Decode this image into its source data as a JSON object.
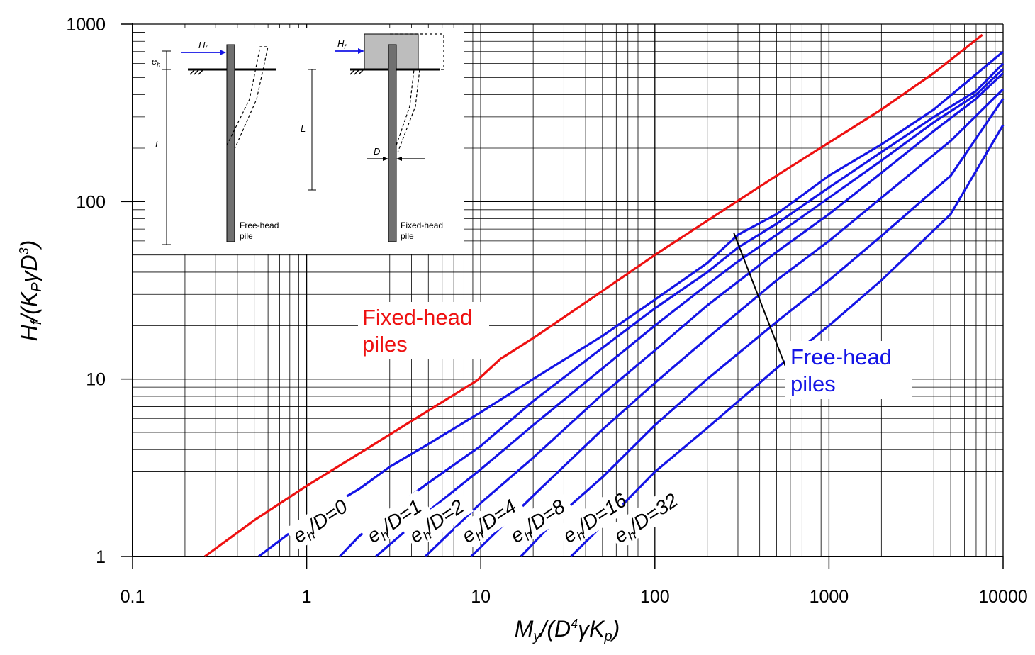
{
  "chart_data": {
    "type": "line",
    "log_x": true,
    "log_y": true,
    "xlim": [
      0.1,
      10000
    ],
    "ylim": [
      1,
      1000
    ],
    "x_ticks": [
      "0.1",
      "1",
      "10",
      "100",
      "1000",
      "10000"
    ],
    "y_ticks": [
      "1",
      "10",
      "100",
      "1000"
    ],
    "grid": true,
    "xlabel": {
      "main": "M",
      "sub": "y",
      "rest1": "/(D",
      "sup": "4",
      "rest2": "γK",
      "sub2": "p",
      "rest3": ")"
    },
    "ylabel": {
      "main": "H",
      "sub": "f",
      "rest1": "/(K",
      "sub2": "P",
      "rest2": "γD",
      "sup": "3",
      "rest3": ")"
    },
    "series": [
      {
        "name": "Fixed-head piles",
        "color": "#ee1111",
        "x": [
          0.26,
          0.5,
          1,
          2,
          4,
          9.5,
          13,
          20,
          40,
          100,
          200,
          500,
          1000,
          2000,
          4000,
          7600
        ],
        "y": [
          1.0,
          1.6,
          2.5,
          3.8,
          5.8,
          9.8,
          13,
          17,
          27,
          50,
          78,
          140,
          215,
          330,
          530,
          870
        ]
      },
      {
        "name": "e_h/D=0",
        "color": "#1414e6",
        "x": [
          0.53,
          1,
          2,
          3,
          5,
          10,
          20,
          50,
          100,
          200,
          300,
          500,
          1000,
          2000,
          4000,
          10000
        ],
        "y": [
          1.0,
          1.6,
          2.4,
          3.2,
          4.3,
          6.5,
          10,
          17.5,
          28,
          45,
          65,
          85,
          140,
          210,
          330,
          700
        ]
      },
      {
        "name": "e_h/D=1",
        "color": "#1414e6",
        "x": [
          1.55,
          2,
          3,
          5,
          10,
          20,
          50,
          100,
          200,
          300,
          500,
          1000,
          2000,
          4000,
          7000,
          10000
        ],
        "y": [
          1.0,
          1.3,
          1.8,
          2.6,
          4.2,
          7.5,
          15,
          25,
          40,
          55,
          75,
          120,
          190,
          300,
          420,
          600
        ]
      },
      {
        "name": "e_h/D=2",
        "color": "#1414e6",
        "x": [
          2.5,
          5,
          10,
          20,
          50,
          100,
          200,
          300,
          500,
          1000,
          2000,
          4000,
          7000,
          10000
        ],
        "y": [
          1.0,
          1.8,
          3.1,
          5.5,
          11.5,
          20,
          34,
          46,
          65,
          105,
          170,
          280,
          400,
          560
        ]
      },
      {
        "name": "e_h/D=4",
        "color": "#1414e6",
        "x": [
          4.8,
          10,
          20,
          50,
          100,
          200,
          500,
          1000,
          2000,
          4000,
          7000,
          10000
        ],
        "y": [
          1.0,
          2.0,
          3.6,
          8.2,
          14.5,
          26,
          52,
          85,
          145,
          250,
          380,
          530
        ]
      },
      {
        "name": "e_h/D=8",
        "color": "#1414e6",
        "x": [
          8.8,
          20,
          50,
          100,
          200,
          500,
          1000,
          2000,
          5000,
          10000
        ],
        "y": [
          1.0,
          2.2,
          5.2,
          9.5,
          17,
          36,
          60,
          105,
          220,
          430
        ]
      },
      {
        "name": "e_h/D=16",
        "color": "#1414e6",
        "x": [
          17,
          30,
          50,
          100,
          200,
          500,
          1000,
          2000,
          5000,
          10000
        ],
        "y": [
          1.0,
          1.8,
          2.8,
          5.5,
          10,
          21,
          36,
          64,
          140,
          380
        ]
      },
      {
        "name": "e_h/D=32",
        "color": "#1414e6",
        "x": [
          33,
          50,
          100,
          200,
          500,
          1000,
          2000,
          5000,
          10000
        ],
        "y": [
          1.0,
          1.5,
          3.0,
          5.3,
          11.5,
          20,
          36,
          85,
          270
        ]
      }
    ],
    "series_labels": [
      {
        "base": "e",
        "sub": "h",
        "rest": "/D=0",
        "x": 0.9,
        "y": 1.18
      },
      {
        "base": "e",
        "sub": "h",
        "rest": "/D=1",
        "x": 2.4,
        "y": 1.18
      },
      {
        "base": "e",
        "sub": "h",
        "rest": "/D=2",
        "x": 4.2,
        "y": 1.18
      },
      {
        "base": "e",
        "sub": "h",
        "rest": "/D=4",
        "x": 8.4,
        "y": 1.18
      },
      {
        "base": "e",
        "sub": "h",
        "rest": "/D=8",
        "x": 16,
        "y": 1.18
      },
      {
        "base": "e",
        "sub": "h",
        "rest": "/D=16",
        "x": 32,
        "y": 1.18
      },
      {
        "base": "e",
        "sub": "h",
        "rest": "/D=32",
        "x": 63,
        "y": 1.18
      }
    ],
    "annotations": {
      "fixed_head": {
        "line1": "Fixed-head",
        "line2": "piles",
        "color": "#ee1111"
      },
      "free_head": {
        "line1": "Free-head",
        "line2": "piles",
        "color": "#1414e6"
      }
    },
    "inset": {
      "free_head_label_1": "Free-head",
      "free_head_label_2": "pile",
      "fixed_head_label_1": "Fixed-head",
      "fixed_head_label_2": "pile",
      "force_label": "H",
      "force_sub": "f",
      "ecc_label": "e",
      "ecc_sub": "h",
      "length_label": "L",
      "diameter_label": "D"
    }
  }
}
